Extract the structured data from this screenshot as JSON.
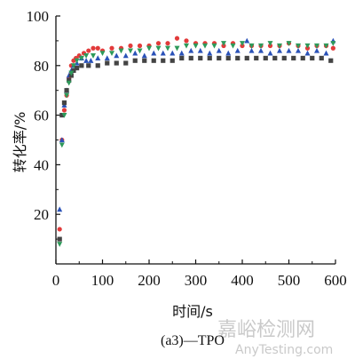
{
  "chart_data": {
    "type": "scatter",
    "xlabel": "时间/s",
    "ylabel": "转化率/%",
    "xlim": [
      0,
      600
    ],
    "ylim": [
      0,
      100
    ],
    "xticks": [
      "0",
      "100",
      "200",
      "300",
      "400",
      "500",
      "600"
    ],
    "yticks": [
      "20",
      "40",
      "60",
      "80",
      "100"
    ],
    "caption": "(a3)—TPO",
    "grid": false,
    "series": [
      {
        "marker": "circle",
        "color": "#e23b3b",
        "points": [
          [
            8,
            14
          ],
          [
            13,
            50
          ],
          [
            18,
            62
          ],
          [
            23,
            68
          ],
          [
            28,
            75
          ],
          [
            33,
            80
          ],
          [
            38,
            82
          ],
          [
            43,
            83
          ],
          [
            50,
            84
          ],
          [
            60,
            85
          ],
          [
            70,
            86
          ],
          [
            80,
            87
          ],
          [
            90,
            87
          ],
          [
            100,
            86
          ],
          [
            120,
            87
          ],
          [
            140,
            87
          ],
          [
            160,
            88
          ],
          [
            180,
            88
          ],
          [
            200,
            88
          ],
          [
            220,
            89
          ],
          [
            240,
            89
          ],
          [
            260,
            91
          ],
          [
            280,
            90
          ],
          [
            300,
            89
          ],
          [
            320,
            89
          ],
          [
            340,
            89
          ],
          [
            360,
            88
          ],
          [
            380,
            89
          ],
          [
            400,
            88
          ],
          [
            420,
            88
          ],
          [
            440,
            88
          ],
          [
            460,
            88
          ],
          [
            480,
            88
          ],
          [
            500,
            89
          ],
          [
            520,
            88
          ],
          [
            540,
            87
          ],
          [
            560,
            88
          ],
          [
            580,
            88
          ],
          [
            595,
            87
          ]
        ]
      },
      {
        "marker": "triangle",
        "color": "#2a52b8",
        "points": [
          [
            8,
            22
          ],
          [
            13,
            50
          ],
          [
            18,
            64
          ],
          [
            23,
            70
          ],
          [
            28,
            76
          ],
          [
            33,
            78
          ],
          [
            38,
            80
          ],
          [
            45,
            81
          ],
          [
            55,
            83
          ],
          [
            65,
            82
          ],
          [
            75,
            82
          ],
          [
            90,
            83
          ],
          [
            110,
            83
          ],
          [
            130,
            84
          ],
          [
            150,
            84
          ],
          [
            170,
            85
          ],
          [
            190,
            84
          ],
          [
            210,
            85
          ],
          [
            230,
            85
          ],
          [
            250,
            85
          ],
          [
            270,
            85
          ],
          [
            290,
            86
          ],
          [
            310,
            86
          ],
          [
            330,
            85
          ],
          [
            350,
            86
          ],
          [
            370,
            85
          ],
          [
            390,
            86
          ],
          [
            410,
            90
          ],
          [
            420,
            86
          ],
          [
            440,
            86
          ],
          [
            460,
            85
          ],
          [
            480,
            86
          ],
          [
            500,
            86
          ],
          [
            520,
            86
          ],
          [
            540,
            85
          ],
          [
            560,
            86
          ],
          [
            580,
            85
          ],
          [
            595,
            90
          ]
        ]
      },
      {
        "marker": "square",
        "color": "#444444",
        "points": [
          [
            8,
            10
          ],
          [
            13,
            60
          ],
          [
            18,
            65
          ],
          [
            23,
            70
          ],
          [
            28,
            74
          ],
          [
            33,
            76
          ],
          [
            38,
            78
          ],
          [
            45,
            79
          ],
          [
            55,
            80
          ],
          [
            70,
            80
          ],
          [
            90,
            80
          ],
          [
            110,
            81
          ],
          [
            130,
            81
          ],
          [
            150,
            81
          ],
          [
            170,
            82
          ],
          [
            190,
            82
          ],
          [
            210,
            82
          ],
          [
            230,
            82
          ],
          [
            250,
            82
          ],
          [
            270,
            83
          ],
          [
            290,
            83
          ],
          [
            310,
            83
          ],
          [
            330,
            83
          ],
          [
            350,
            83
          ],
          [
            370,
            83
          ],
          [
            390,
            83
          ],
          [
            410,
            83
          ],
          [
            430,
            83
          ],
          [
            450,
            83
          ],
          [
            470,
            83
          ],
          [
            490,
            83
          ],
          [
            510,
            83
          ],
          [
            530,
            83
          ],
          [
            550,
            83
          ],
          [
            570,
            83
          ],
          [
            590,
            82
          ]
        ]
      },
      {
        "marker": "triangle-down",
        "color": "#2e9a5a",
        "points": [
          [
            8,
            8
          ],
          [
            13,
            48
          ],
          [
            18,
            60
          ],
          [
            23,
            68
          ],
          [
            28,
            73
          ],
          [
            33,
            77
          ],
          [
            38,
            80
          ],
          [
            45,
            82
          ],
          [
            55,
            83
          ],
          [
            65,
            84
          ],
          [
            80,
            84
          ],
          [
            100,
            85
          ],
          [
            120,
            85
          ],
          [
            140,
            86
          ],
          [
            160,
            86
          ],
          [
            180,
            86
          ],
          [
            200,
            87
          ],
          [
            220,
            87
          ],
          [
            240,
            87
          ],
          [
            260,
            87
          ],
          [
            280,
            88
          ],
          [
            300,
            88
          ],
          [
            320,
            88
          ],
          [
            340,
            88
          ],
          [
            360,
            89
          ],
          [
            380,
            88
          ],
          [
            400,
            89
          ],
          [
            420,
            88
          ],
          [
            440,
            88
          ],
          [
            460,
            89
          ],
          [
            480,
            88
          ],
          [
            500,
            89
          ],
          [
            520,
            88
          ],
          [
            540,
            88
          ],
          [
            560,
            88
          ],
          [
            580,
            88
          ],
          [
            595,
            89
          ]
        ]
      }
    ]
  },
  "watermark": {
    "brand_cn": "嘉峪检测网",
    "brand_en": "AnyTesting.com"
  }
}
